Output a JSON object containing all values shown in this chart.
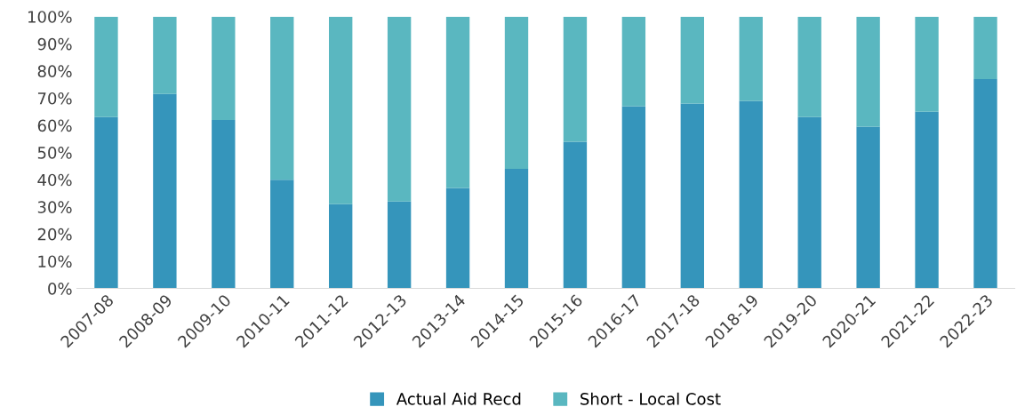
{
  "chart_data": {
    "type": "bar",
    "stacked": true,
    "categories": [
      "2007-08",
      "2008-09",
      "2009-10",
      "2010-11",
      "2011-12",
      "2012-13",
      "2013-14",
      "2014-15",
      "2015-16",
      "2016-17",
      "2017-18",
      "2018-19",
      "2019-20",
      "2020-21",
      "2021-22",
      "2022-23"
    ],
    "series": [
      {
        "name": "Actual Aid Recd",
        "color": "#3595bb",
        "values": [
          63,
          71.5,
          62,
          40,
          31,
          32,
          37,
          44,
          54,
          67,
          68,
          69,
          63,
          59.5,
          65,
          77
        ]
      },
      {
        "name": "Short - Local Cost",
        "color": "#5ab7c0",
        "values": [
          37,
          28.5,
          38,
          60,
          69,
          68,
          63,
          56,
          46,
          33,
          32,
          31,
          37,
          40.5,
          35,
          23
        ]
      }
    ],
    "ylim": [
      0,
      100
    ],
    "yticks": [
      {
        "value": 0,
        "label": "0%"
      },
      {
        "value": 10,
        "label": "10%"
      },
      {
        "value": 20,
        "label": "20%"
      },
      {
        "value": 30,
        "label": "30%"
      },
      {
        "value": 40,
        "label": "40%"
      },
      {
        "value": 50,
        "label": "50%"
      },
      {
        "value": 60,
        "label": "60%"
      },
      {
        "value": 70,
        "label": "70%"
      },
      {
        "value": 80,
        "label": "80%"
      },
      {
        "value": 90,
        "label": "90%"
      },
      {
        "value": 100,
        "label": "100%"
      }
    ],
    "legend": "bottom"
  }
}
